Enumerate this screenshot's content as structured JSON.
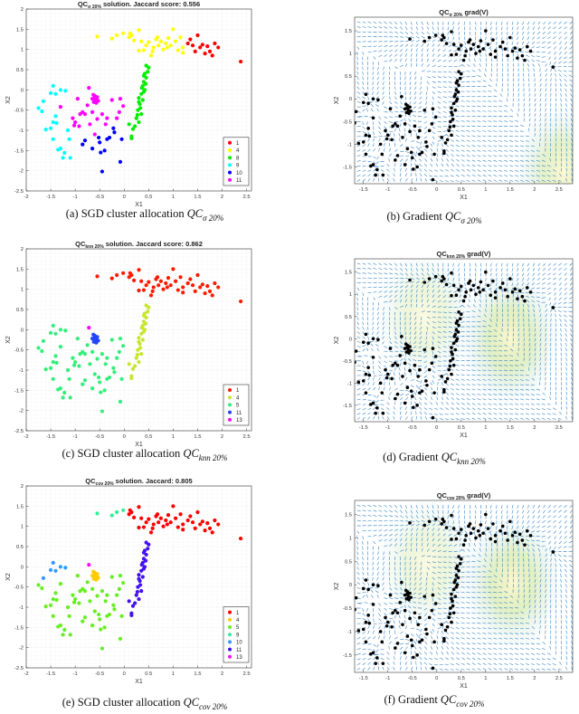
{
  "point_groups": {
    "armWest": [
      [
        0.1,
        1.3
      ],
      [
        0.15,
        1.35
      ],
      [
        0.2,
        1.22
      ],
      [
        0.3,
        1.48
      ],
      [
        0.3,
        0.97
      ],
      [
        0.4,
        0.98
      ],
      [
        0.45,
        1.1
      ],
      [
        0.5,
        1.18
      ],
      [
        0.55,
        0.85
      ],
      [
        0.6,
        1.05
      ],
      [
        0.65,
        1.25
      ],
      [
        0.7,
        1.1
      ],
      [
        0.75,
        1.2
      ],
      [
        0.8,
        1.0
      ],
      [
        0.85,
        1.15
      ],
      [
        0.9,
        1.28
      ],
      [
        0.95,
        1.1
      ],
      [
        1.0,
        1.5
      ],
      [
        1.05,
        1.2
      ],
      [
        1.1,
        0.98
      ],
      [
        1.15,
        1.3
      ],
      [
        1.2,
        1.05
      ],
      [
        0.35,
        1.2
      ],
      [
        1.2,
        0.92
      ],
      [
        0.12,
        1.4
      ],
      [
        0.58,
        0.95
      ],
      [
        0.68,
        1.3
      ],
      [
        0.88,
        1.05
      ]
    ],
    "armEast": [
      [
        1.3,
        1.15
      ],
      [
        1.35,
        1.25
      ],
      [
        1.4,
        1.1
      ],
      [
        1.45,
        0.95
      ],
      [
        1.5,
        1.35
      ],
      [
        1.55,
        1.05
      ],
      [
        1.6,
        1.12
      ],
      [
        1.7,
        1.08
      ],
      [
        1.75,
        0.95
      ],
      [
        1.85,
        1.15
      ],
      [
        1.92,
        1.05
      ],
      [
        2.38,
        0.7
      ],
      [
        1.65,
        0.9
      ],
      [
        1.8,
        0.85
      ]
    ],
    "topLeft": [
      [
        -0.55,
        1.32
      ],
      [
        -0.25,
        1.27
      ],
      [
        -0.15,
        1.35
      ],
      [
        -0.02,
        1.4
      ]
    ],
    "diagonal": [
      [
        0.45,
        0.6
      ],
      [
        0.5,
        0.55
      ],
      [
        0.42,
        0.4
      ],
      [
        0.4,
        0.2
      ],
      [
        0.38,
        0.1
      ],
      [
        0.45,
        0.3
      ],
      [
        0.35,
        -0.1
      ],
      [
        0.4,
        -0.05
      ],
      [
        0.3,
        -0.2
      ],
      [
        0.32,
        -0.35
      ],
      [
        0.28,
        -0.5
      ],
      [
        0.35,
        -0.6
      ],
      [
        0.25,
        -0.7
      ],
      [
        0.3,
        -0.8
      ],
      [
        0.22,
        -0.9
      ],
      [
        0.18,
        -0.97
      ],
      [
        0.1,
        -0.85
      ],
      [
        0.15,
        -1.2
      ],
      [
        0.15,
        -1.15
      ],
      [
        0.42,
        0.0
      ],
      [
        0.33,
        -0.45
      ],
      [
        0.48,
        0.45
      ],
      [
        0.4,
        0.35
      ],
      [
        0.36,
        0.05
      ],
      [
        0.3,
        -0.3
      ],
      [
        0.27,
        -0.62
      ],
      [
        0.44,
        0.15
      ],
      [
        0.38,
        -0.25
      ]
    ],
    "blob": [
      [
        -0.6,
        -0.2
      ],
      [
        -0.58,
        -0.25
      ],
      [
        -0.62,
        -0.3
      ],
      [
        -0.55,
        -0.18
      ],
      [
        -0.65,
        -0.22
      ],
      [
        -0.57,
        -0.32
      ],
      [
        -0.6,
        -0.15
      ],
      [
        -0.53,
        -0.27
      ],
      [
        -0.63,
        -0.12
      ]
    ],
    "leftNW": [
      [
        -1.45,
        0.1
      ],
      [
        -1.5,
        -0.08
      ],
      [
        -1.4,
        -0.1
      ],
      [
        -1.3,
        0.0
      ],
      [
        -1.2,
        -0.02
      ],
      [
        -1.65,
        -0.28
      ]
    ],
    "leftWest": [
      [
        -1.75,
        -0.45
      ],
      [
        -1.68,
        -0.53
      ],
      [
        -1.45,
        -0.8
      ],
      [
        -1.38,
        -0.82
      ],
      [
        -1.6,
        -0.98
      ],
      [
        -1.5,
        -0.95
      ],
      [
        -1.45,
        -1.22
      ],
      [
        -1.35,
        -1.48
      ],
      [
        -1.3,
        -1.45
      ],
      [
        -1.25,
        -1.68
      ],
      [
        -1.22,
        -1.56
      ],
      [
        -1.15,
        -1.0
      ],
      [
        -1.12,
        -1.22
      ],
      [
        -1.1,
        -1.68
      ],
      [
        -1.4,
        -0.65
      ]
    ],
    "leftSouth": [
      [
        -0.85,
        -1.35
      ],
      [
        -0.8,
        -1.25
      ],
      [
        -0.65,
        -1.45
      ],
      [
        -0.5,
        -1.3
      ],
      [
        -0.48,
        -1.55
      ],
      [
        -0.45,
        -2.02
      ],
      [
        -0.4,
        -1.5
      ],
      [
        -0.35,
        -1.22
      ],
      [
        -0.3,
        -1.18
      ],
      [
        -0.08,
        -1.78
      ],
      [
        -0.05,
        -1.22
      ],
      [
        -0.22,
        -0.95
      ],
      [
        -0.2,
        -1.05
      ],
      [
        -0.52,
        -1.18
      ]
    ],
    "leftMid": [
      [
        -1.3,
        -0.42
      ],
      [
        -1.05,
        -0.7
      ],
      [
        -1.0,
        -0.8
      ],
      [
        -0.95,
        -0.22
      ],
      [
        -0.92,
        -0.9
      ],
      [
        -0.75,
        -0.38
      ],
      [
        -0.7,
        -0.85
      ],
      [
        -0.6,
        -1.1
      ],
      [
        -0.55,
        -0.72
      ],
      [
        -0.38,
        -0.85
      ],
      [
        -0.25,
        -0.25
      ],
      [
        -0.15,
        -0.7
      ],
      [
        -0.1,
        -0.55
      ],
      [
        -0.08,
        -0.22
      ],
      [
        -0.02,
        -0.4
      ],
      [
        -0.85,
        -0.55
      ],
      [
        -0.8,
        -0.6
      ],
      [
        -1.02,
        -0.88
      ],
      [
        -0.9,
        -0.6
      ],
      [
        -0.45,
        -0.6
      ],
      [
        -0.35,
        -0.7
      ],
      [
        -0.65,
        -0.55
      ]
    ],
    "single": [
      [
        -0.72,
        0.05
      ]
    ]
  },
  "chart_data": [
    {
      "id": "a",
      "type": "scatter",
      "title": {
        "main": "QC",
        "sub": "σ 20%",
        "rest": " solution. Jaccard score: 0.556"
      },
      "xlabel": "X1",
      "ylabel": "X2",
      "xlim": [
        -2,
        2.6
      ],
      "ylim": [
        -2.5,
        2
      ],
      "xticks": [
        "-2",
        "-1.5",
        "-1",
        "-0.5",
        "0",
        "0.5",
        "1",
        "1.5",
        "2",
        "2.5"
      ],
      "yticks": [
        "-2.5",
        "-2",
        "-1.5",
        "-1",
        "-0.5",
        "0",
        "0.5",
        "1",
        "1.5",
        "2"
      ],
      "grid": true,
      "legend_position": "bottom-right",
      "legend": [
        {
          "name": "1",
          "color": "#ff0000"
        },
        {
          "name": "4",
          "color": "#ffff00"
        },
        {
          "name": "8",
          "color": "#00ee00"
        },
        {
          "name": "9",
          "color": "#00ffff"
        },
        {
          "name": "10",
          "color": "#0000ff"
        },
        {
          "name": "11",
          "color": "#ff00ff"
        }
      ],
      "group_labels": {
        "armWest": "4",
        "armEast": "1",
        "topLeft": "4",
        "diagonal": "8",
        "blob": "11",
        "leftNW": "9",
        "leftWest": "9",
        "leftSouth": "10",
        "leftMid": "11",
        "single": "11"
      },
      "caption": {
        "prefix": "(a) SGD cluster allocation ",
        "main": "QC",
        "sub": "σ 20%"
      }
    },
    {
      "id": "b",
      "type": "quiver",
      "title": {
        "main": "QC",
        "sub": "σ 20%",
        "rest": "      grad(V)"
      },
      "xlabel": "X1",
      "ylabel": "X2",
      "xlim": [
        -1.68,
        2.78
      ],
      "ylim": [
        -1.87,
        1.8
      ],
      "xticks": [
        "-1.5",
        "-1",
        "-0.5",
        "0",
        "0.5",
        "1",
        "1.5",
        "2",
        "2.5"
      ],
      "yticks": [
        "-1.5",
        "-1",
        "-0.5",
        "0",
        "0.5",
        "1",
        "1.5"
      ],
      "arrow_color": "#1f77c4",
      "point_color": "#000000",
      "potential_peaks": [
        [
          2.6,
          -1.6,
          0.9
        ]
      ],
      "caption": {
        "prefix": "(b) Gradient ",
        "main": "QC",
        "sub": "σ 20%"
      }
    },
    {
      "id": "c",
      "type": "scatter",
      "title": {
        "main": "QC",
        "sub": "knn 20%",
        "rest": " solution. Jaccard score: 0.862"
      },
      "xlabel": "X1",
      "ylabel": "X2",
      "xlim": [
        -2,
        2.6
      ],
      "ylim": [
        -2.5,
        2
      ],
      "xticks": [
        "-2",
        "-1.5",
        "-1",
        "-0.5",
        "0",
        "0.5",
        "1",
        "1.5",
        "2",
        "2.5"
      ],
      "yticks": [
        "-2.5",
        "-2",
        "-1.5",
        "-1",
        "-0.5",
        "0",
        "0.5",
        "1",
        "1.5",
        "2"
      ],
      "grid": true,
      "legend_position": "bottom-right",
      "legend": [
        {
          "name": "1",
          "color": "#ff1a00"
        },
        {
          "name": "4",
          "color": "#c8e62e"
        },
        {
          "name": "5",
          "color": "#33ee7a"
        },
        {
          "name": "11",
          "color": "#2244ff"
        },
        {
          "name": "13",
          "color": "#ff00ff"
        }
      ],
      "group_labels": {
        "armWest": "1",
        "armEast": "1",
        "topLeft": "1",
        "diagonal": "4",
        "blob": "11",
        "leftNW": "5",
        "leftWest": "5",
        "leftSouth": "5",
        "leftMid": "5",
        "single": "13"
      },
      "caption": {
        "prefix": "(c) SGD cluster allocation ",
        "main": "QC",
        "sub": "knn 20%"
      }
    },
    {
      "id": "d",
      "type": "quiver",
      "title": {
        "main": "QC",
        "sub": "knn 20%",
        "rest": "      grad(V)"
      },
      "xlabel": "X1",
      "ylabel": "X2",
      "xlim": [
        -1.68,
        2.78
      ],
      "ylim": [
        -1.87,
        1.8
      ],
      "xticks": [
        "-1.5",
        "-1",
        "-0.5",
        "0",
        "0.5",
        "1",
        "1.5",
        "2",
        "2.5"
      ],
      "yticks": [
        "-1.5",
        "-1",
        "-0.5",
        "0",
        "0.5",
        "1",
        "1.5"
      ],
      "arrow_color": "#1f77c4",
      "point_color": "#000000",
      "potential_peaks": [
        [
          1.5,
          0.0,
          1.0
        ],
        [
          -0.25,
          0.5,
          0.6
        ]
      ],
      "caption": {
        "prefix": "(d) Gradient ",
        "main": "QC",
        "sub": "knn 20%"
      }
    },
    {
      "id": "e",
      "type": "scatter",
      "title": {
        "main": "QC",
        "sub": "cov 20%",
        "rest": " solution. Jaccard: 0.805"
      },
      "xlabel": "X1",
      "ylabel": "X2",
      "xlim": [
        -2,
        2.6
      ],
      "ylim": [
        -2.5,
        2
      ],
      "xticks": [
        "-2",
        "-1.5",
        "-1",
        "-0.5",
        "0",
        "0.5",
        "1",
        "1.5",
        "2",
        "2.5"
      ],
      "yticks": [
        "-2.5",
        "-2",
        "-1.5",
        "-1",
        "-0.5",
        "0",
        "0.5",
        "1",
        "1.5",
        "2"
      ],
      "grid": true,
      "legend_position": "bottom-right",
      "legend": [
        {
          "name": "1",
          "color": "#ff0000"
        },
        {
          "name": "4",
          "color": "#ffcc00"
        },
        {
          "name": "5",
          "color": "#66ee22"
        },
        {
          "name": "9",
          "color": "#33ee99"
        },
        {
          "name": "10",
          "color": "#3399ff"
        },
        {
          "name": "11",
          "color": "#4411ee"
        },
        {
          "name": "13",
          "color": "#ff11ee"
        }
      ],
      "group_labels": {
        "armWest": "1",
        "armEast": "1",
        "topLeft": "9",
        "diagonal": "11",
        "blob": "4",
        "leftNW": "10",
        "leftWest": "5",
        "leftSouth": "5",
        "leftMid": "5",
        "single": "13"
      },
      "caption": {
        "prefix": "(e) SGD cluster allocation ",
        "main": "QC",
        "sub": "cov 20%"
      }
    },
    {
      "id": "f",
      "type": "quiver",
      "title": {
        "main": "QC",
        "sub": "cov 20%",
        "rest": "      grad(V)"
      },
      "xlabel": "X1",
      "ylabel": "X2",
      "xlim": [
        -1.68,
        2.78
      ],
      "ylim": [
        -1.87,
        1.8
      ],
      "xticks": [
        "-1.5",
        "-1",
        "-0.5",
        "0",
        "0.5",
        "1",
        "1.5",
        "2",
        "2.5"
      ],
      "yticks": [
        "-1.5",
        "-1",
        "-0.5",
        "0",
        "0.5",
        "1",
        "1.5"
      ],
      "arrow_color": "#1f77c4",
      "point_color": "#000000",
      "potential_peaks": [
        [
          1.55,
          0.05,
          1.0
        ],
        [
          -0.2,
          0.45,
          0.6
        ]
      ],
      "caption": {
        "prefix": "(f) Gradient ",
        "main": "QC",
        "sub": "cov 20%"
      }
    }
  ]
}
